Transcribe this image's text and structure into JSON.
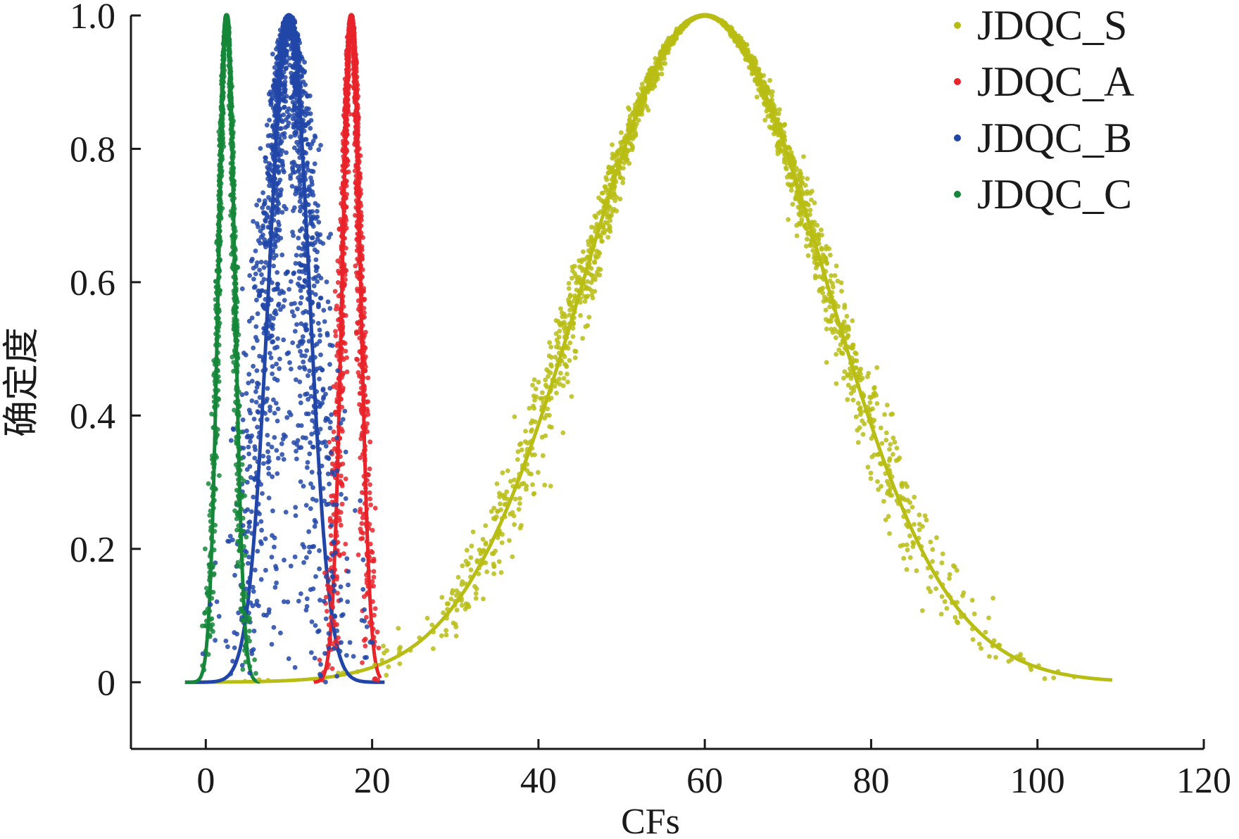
{
  "chart_data": {
    "type": "scatter",
    "xlabel": "CFs",
    "ylabel": "确定度",
    "xlim": [
      -9,
      120
    ],
    "ylim": [
      -0.1,
      1.0
    ],
    "x_ticks": [
      0,
      20,
      40,
      60,
      80,
      100,
      120
    ],
    "y_ticks": [
      0,
      0.2,
      0.4,
      0.6,
      0.8,
      1.0
    ],
    "x_tick_labels": [
      "0",
      "20",
      "40",
      "60",
      "80",
      "100",
      "120"
    ],
    "y_tick_labels": [
      "0",
      "0.2",
      "0.4",
      "0.6",
      "0.8",
      "1.0"
    ],
    "grid": false,
    "legend_position": "top-right",
    "series": [
      {
        "name": "JDQC_S",
        "color": "#b8bd14",
        "curve": "normal-cloud",
        "Ex": 60,
        "En": 14.5,
        "He": 0.8,
        "x_range": [
          -2,
          109
        ],
        "scatter_count": 2200
      },
      {
        "name": "JDQC_A",
        "color": "#e8232a",
        "curve": "normal-cloud",
        "Ex": 17.5,
        "En": 1.1,
        "He": 0.25,
        "x_range": [
          13,
          21
        ],
        "scatter_count": 1400
      },
      {
        "name": "JDQC_B",
        "color": "#2146a8",
        "curve": "normal-cloud",
        "Ex": 10,
        "En": 2.4,
        "He": 1.1,
        "x_range": [
          -2.5,
          21.5
        ],
        "scatter_count": 1800
      },
      {
        "name": "JDQC_C",
        "color": "#16873a",
        "curve": "normal-cloud",
        "Ex": 2.5,
        "En": 1.0,
        "He": 0.15,
        "x_range": [
          -2.5,
          6.5
        ],
        "scatter_count": 1200
      }
    ]
  }
}
